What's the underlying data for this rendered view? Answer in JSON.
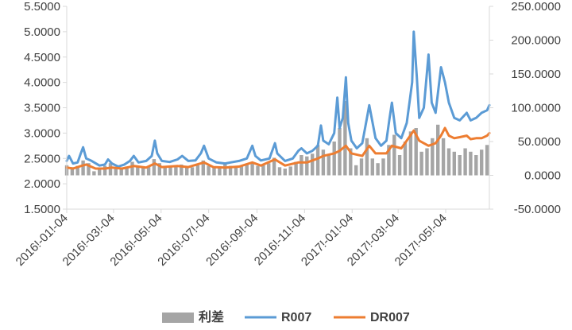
{
  "chart_data": {
    "type": "line",
    "title": "",
    "y_left": {
      "ylim": [
        1.5,
        5.5
      ],
      "ticks": [
        "1.5000",
        "2.0000",
        "2.5000",
        "3.0000",
        "3.5000",
        "4.0000",
        "4.5000",
        "5.0000",
        "5.5000"
      ]
    },
    "y_right": {
      "ylim": [
        -50,
        250
      ],
      "ticks": [
        "-50.0000",
        "0.0000",
        "50.0000",
        "100.0000",
        "150.0000",
        "200.0000",
        "250.0000"
      ]
    },
    "x_range": [
      "2016-01-04",
      "2017-06-29"
    ],
    "x_ticks": [
      {
        "label": "2016!-01!-04",
        "date": "2016-01-04"
      },
      {
        "label": "2016!-03!-04",
        "date": "2016-03-04"
      },
      {
        "label": "2016!-05!-04",
        "date": "2016-05-04"
      },
      {
        "label": "2016!-07!-04",
        "date": "2016-07-04"
      },
      {
        "label": "2016!-09!-04",
        "date": "2016-09-04"
      },
      {
        "label": "2016!-11!-04",
        "date": "2016-11-04"
      },
      {
        "label": "2017!-01!-04",
        "date": "2017-01-04"
      },
      {
        "label": "2017!-03!-04",
        "date": "2017-03-04"
      },
      {
        "label": "2017!-05!-04",
        "date": "2017-05-04"
      }
    ],
    "grid": false,
    "legend_position": "bottom",
    "series": [
      {
        "name": "利差",
        "type": "bar",
        "axis": "right",
        "color": "#a5a5a5",
        "points": [
          [
            "2016-01-04",
            15
          ],
          [
            "2016-01-11",
            12
          ],
          [
            "2016-01-18",
            14
          ],
          [
            "2016-01-25",
            22
          ],
          [
            "2016-02-01",
            18
          ],
          [
            "2016-02-08",
            6
          ],
          [
            "2016-02-15",
            10
          ],
          [
            "2016-02-22",
            14
          ],
          [
            "2016-02-29",
            18
          ],
          [
            "2016-03-07",
            12
          ],
          [
            "2016-03-14",
            11
          ],
          [
            "2016-03-21",
            13
          ],
          [
            "2016-03-28",
            20
          ],
          [
            "2016-04-04",
            13
          ],
          [
            "2016-04-11",
            12
          ],
          [
            "2016-04-18",
            14
          ],
          [
            "2016-04-25",
            24
          ],
          [
            "2016-05-02",
            18
          ],
          [
            "2016-05-09",
            13
          ],
          [
            "2016-05-16",
            12
          ],
          [
            "2016-05-23",
            14
          ],
          [
            "2016-05-30",
            16
          ],
          [
            "2016-06-06",
            13
          ],
          [
            "2016-06-13",
            12
          ],
          [
            "2016-06-20",
            15
          ],
          [
            "2016-06-27",
            22
          ],
          [
            "2016-07-04",
            14
          ],
          [
            "2016-07-11",
            12
          ],
          [
            "2016-07-18",
            13
          ],
          [
            "2016-07-25",
            17
          ],
          [
            "2016-08-01",
            14
          ],
          [
            "2016-08-08",
            13
          ],
          [
            "2016-08-15",
            14
          ],
          [
            "2016-08-22",
            16
          ],
          [
            "2016-08-29",
            20
          ],
          [
            "2016-09-05",
            14
          ],
          [
            "2016-09-12",
            15
          ],
          [
            "2016-09-19",
            18
          ],
          [
            "2016-09-26",
            26
          ],
          [
            "2016-10-03",
            12
          ],
          [
            "2016-10-10",
            10
          ],
          [
            "2016-10-17",
            13
          ],
          [
            "2016-10-24",
            20
          ],
          [
            "2016-10-31",
            30
          ],
          [
            "2016-11-07",
            28
          ],
          [
            "2016-11-14",
            32
          ],
          [
            "2016-11-21",
            45
          ],
          [
            "2016-11-28",
            38
          ],
          [
            "2016-12-05",
            30
          ],
          [
            "2016-12-12",
            50
          ],
          [
            "2016-12-19",
            70
          ],
          [
            "2016-12-26",
            110
          ],
          [
            "2017-01-02",
            40
          ],
          [
            "2017-01-09",
            15
          ],
          [
            "2017-01-16",
            25
          ],
          [
            "2017-01-23",
            55
          ],
          [
            "2017-01-30",
            25
          ],
          [
            "2017-02-06",
            18
          ],
          [
            "2017-02-13",
            25
          ],
          [
            "2017-02-20",
            45
          ],
          [
            "2017-02-27",
            60
          ],
          [
            "2017-03-06",
            30
          ],
          [
            "2017-03-13",
            50
          ],
          [
            "2017-03-20",
            65
          ],
          [
            "2017-03-27",
            70
          ],
          [
            "2017-04-03",
            35
          ],
          [
            "2017-04-10",
            40
          ],
          [
            "2017-04-17",
            55
          ],
          [
            "2017-04-24",
            75
          ],
          [
            "2017-05-01",
            55
          ],
          [
            "2017-05-08",
            40
          ],
          [
            "2017-05-15",
            35
          ],
          [
            "2017-05-22",
            30
          ],
          [
            "2017-05-29",
            40
          ],
          [
            "2017-06-05",
            35
          ],
          [
            "2017-06-12",
            30
          ],
          [
            "2017-06-19",
            38
          ],
          [
            "2017-06-26",
            45
          ]
        ]
      },
      {
        "name": "R007",
        "type": "line",
        "axis": "left",
        "color": "#5b9bd5",
        "points": [
          [
            "2016-01-04",
            2.45
          ],
          [
            "2016-01-07",
            2.55
          ],
          [
            "2016-01-12",
            2.4
          ],
          [
            "2016-01-18",
            2.42
          ],
          [
            "2016-01-22",
            2.6
          ],
          [
            "2016-01-25",
            2.72
          ],
          [
            "2016-01-29",
            2.5
          ],
          [
            "2016-02-05",
            2.45
          ],
          [
            "2016-02-15",
            2.36
          ],
          [
            "2016-02-22",
            2.38
          ],
          [
            "2016-02-26",
            2.48
          ],
          [
            "2016-03-02",
            2.4
          ],
          [
            "2016-03-10",
            2.34
          ],
          [
            "2016-03-18",
            2.38
          ],
          [
            "2016-03-25",
            2.45
          ],
          [
            "2016-03-30",
            2.55
          ],
          [
            "2016-04-05",
            2.42
          ],
          [
            "2016-04-15",
            2.45
          ],
          [
            "2016-04-22",
            2.55
          ],
          [
            "2016-04-26",
            2.85
          ],
          [
            "2016-04-29",
            2.6
          ],
          [
            "2016-05-05",
            2.45
          ],
          [
            "2016-05-15",
            2.43
          ],
          [
            "2016-05-25",
            2.48
          ],
          [
            "2016-05-31",
            2.55
          ],
          [
            "2016-06-08",
            2.45
          ],
          [
            "2016-06-17",
            2.46
          ],
          [
            "2016-06-24",
            2.6
          ],
          [
            "2016-06-28",
            2.75
          ],
          [
            "2016-07-04",
            2.5
          ],
          [
            "2016-07-14",
            2.42
          ],
          [
            "2016-07-25",
            2.4
          ],
          [
            "2016-08-01",
            2.42
          ],
          [
            "2016-08-12",
            2.45
          ],
          [
            "2016-08-22",
            2.5
          ],
          [
            "2016-08-29",
            2.75
          ],
          [
            "2016-09-02",
            2.55
          ],
          [
            "2016-09-09",
            2.46
          ],
          [
            "2016-09-20",
            2.5
          ],
          [
            "2016-09-27",
            2.8
          ],
          [
            "2016-09-30",
            2.6
          ],
          [
            "2016-10-10",
            2.45
          ],
          [
            "2016-10-20",
            2.5
          ],
          [
            "2016-10-27",
            2.65
          ],
          [
            "2016-10-31",
            2.7
          ],
          [
            "2016-11-07",
            2.6
          ],
          [
            "2016-11-14",
            2.65
          ],
          [
            "2016-11-21",
            2.75
          ],
          [
            "2016-11-25",
            3.15
          ],
          [
            "2016-11-28",
            2.85
          ],
          [
            "2016-12-05",
            2.78
          ],
          [
            "2016-12-12",
            3.0
          ],
          [
            "2016-12-16",
            3.7
          ],
          [
            "2016-12-19",
            3.1
          ],
          [
            "2016-12-23",
            3.3
          ],
          [
            "2016-12-27",
            4.1
          ],
          [
            "2016-12-30",
            3.2
          ],
          [
            "2017-01-03",
            2.85
          ],
          [
            "2017-01-10",
            2.7
          ],
          [
            "2017-01-17",
            2.8
          ],
          [
            "2017-01-23",
            3.3
          ],
          [
            "2017-01-26",
            3.55
          ],
          [
            "2017-02-03",
            2.9
          ],
          [
            "2017-02-10",
            2.75
          ],
          [
            "2017-02-17",
            2.85
          ],
          [
            "2017-02-21",
            3.3
          ],
          [
            "2017-02-24",
            3.6
          ],
          [
            "2017-03-01",
            3.0
          ],
          [
            "2017-03-08",
            2.9
          ],
          [
            "2017-03-15",
            3.2
          ],
          [
            "2017-03-22",
            4.0
          ],
          [
            "2017-03-24",
            5.0
          ],
          [
            "2017-03-28",
            4.1
          ],
          [
            "2017-03-31",
            3.3
          ],
          [
            "2017-04-06",
            3.5
          ],
          [
            "2017-04-12",
            4.55
          ],
          [
            "2017-04-16",
            3.6
          ],
          [
            "2017-04-21",
            3.4
          ],
          [
            "2017-04-28",
            4.3
          ],
          [
            "2017-05-03",
            4.0
          ],
          [
            "2017-05-08",
            3.6
          ],
          [
            "2017-05-15",
            3.3
          ],
          [
            "2017-05-22",
            3.25
          ],
          [
            "2017-05-31",
            3.4
          ],
          [
            "2017-06-05",
            3.25
          ],
          [
            "2017-06-12",
            3.3
          ],
          [
            "2017-06-19",
            3.4
          ],
          [
            "2017-06-26",
            3.45
          ],
          [
            "2017-06-29",
            3.55
          ]
        ]
      },
      {
        "name": "DR007",
        "type": "line",
        "axis": "left",
        "color": "#ed7d31",
        "points": [
          [
            "2016-01-04",
            2.32
          ],
          [
            "2016-01-12",
            2.3
          ],
          [
            "2016-01-22",
            2.35
          ],
          [
            "2016-01-29",
            2.38
          ],
          [
            "2016-02-10",
            2.3
          ],
          [
            "2016-02-22",
            2.3
          ],
          [
            "2016-03-02",
            2.32
          ],
          [
            "2016-03-15",
            2.3
          ],
          [
            "2016-03-30",
            2.35
          ],
          [
            "2016-04-15",
            2.32
          ],
          [
            "2016-04-26",
            2.4
          ],
          [
            "2016-05-05",
            2.33
          ],
          [
            "2016-05-25",
            2.35
          ],
          [
            "2016-06-08",
            2.33
          ],
          [
            "2016-06-28",
            2.42
          ],
          [
            "2016-07-10",
            2.33
          ],
          [
            "2016-07-25",
            2.32
          ],
          [
            "2016-08-12",
            2.34
          ],
          [
            "2016-08-29",
            2.42
          ],
          [
            "2016-09-09",
            2.36
          ],
          [
            "2016-09-27",
            2.48
          ],
          [
            "2016-10-10",
            2.36
          ],
          [
            "2016-10-27",
            2.42
          ],
          [
            "2016-11-07",
            2.42
          ],
          [
            "2016-11-21",
            2.5
          ],
          [
            "2016-11-28",
            2.55
          ],
          [
            "2016-12-12",
            2.6
          ],
          [
            "2016-12-19",
            2.65
          ],
          [
            "2016-12-27",
            2.75
          ],
          [
            "2017-01-03",
            2.6
          ],
          [
            "2017-01-17",
            2.55
          ],
          [
            "2017-01-26",
            2.75
          ],
          [
            "2017-02-03",
            2.6
          ],
          [
            "2017-02-17",
            2.6
          ],
          [
            "2017-02-24",
            2.75
          ],
          [
            "2017-03-08",
            2.7
          ],
          [
            "2017-03-15",
            2.85
          ],
          [
            "2017-03-24",
            3.05
          ],
          [
            "2017-03-31",
            2.85
          ],
          [
            "2017-04-12",
            2.75
          ],
          [
            "2017-04-21",
            2.8
          ],
          [
            "2017-04-28",
            2.95
          ],
          [
            "2017-05-03",
            3.1
          ],
          [
            "2017-05-08",
            2.95
          ],
          [
            "2017-05-15",
            2.9
          ],
          [
            "2017-05-22",
            2.92
          ],
          [
            "2017-05-31",
            2.95
          ],
          [
            "2017-06-05",
            2.88
          ],
          [
            "2017-06-12",
            2.9
          ],
          [
            "2017-06-19",
            2.9
          ],
          [
            "2017-06-26",
            2.95
          ],
          [
            "2017-06-29",
            3.0
          ]
        ]
      }
    ]
  }
}
